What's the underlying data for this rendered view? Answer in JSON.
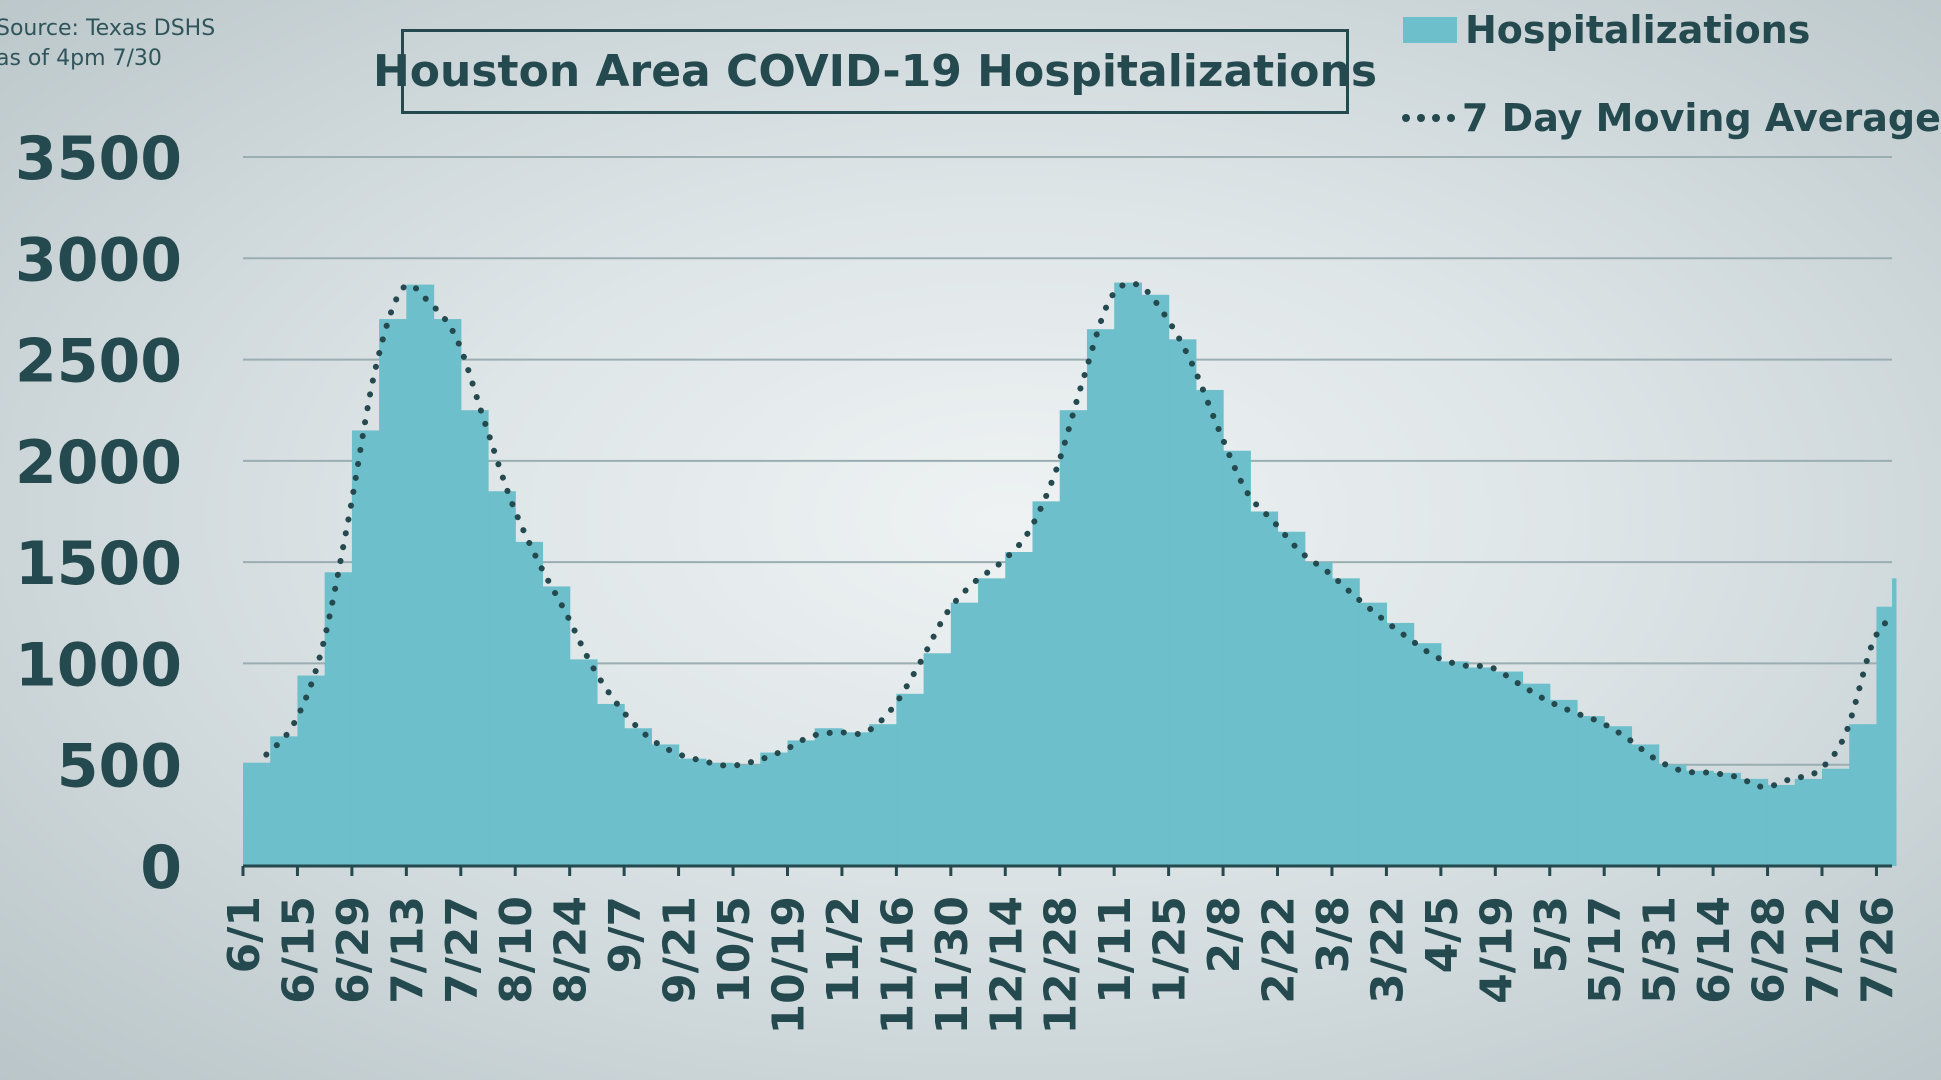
{
  "source": {
    "line1": "Source: Texas DSHS",
    "line2": "as of 4pm 7/30"
  },
  "chart_data": {
    "type": "bar",
    "title": "Houston Area COVID-19 Hospitalizations",
    "xlabel": "",
    "ylabel": "",
    "ylim": [
      0,
      3500
    ],
    "yticks": [
      0,
      500,
      1000,
      1500,
      2000,
      2500,
      3000,
      3500
    ],
    "grid": true,
    "legend_placement": "top-right",
    "x_tick_labels": [
      "6/1",
      "6/15",
      "6/29",
      "7/13",
      "7/27",
      "8/10",
      "8/24",
      "9/7",
      "9/21",
      "10/5",
      "10/19",
      "11/2",
      "11/16",
      "11/30",
      "12/14",
      "12/28",
      "1/11",
      "1/25",
      "2/8",
      "2/22",
      "3/8",
      "3/22",
      "4/5",
      "4/19",
      "5/3",
      "5/17",
      "5/31",
      "6/14",
      "6/28",
      "7/12",
      "7/26"
    ],
    "colors": {
      "bars": "#6dbfcb",
      "line": "#24494e",
      "grid": "#9aaeb2"
    },
    "series": [
      {
        "name": "Hospitalizations",
        "type": "bar",
        "points": [
          {
            "x": "2020-06-01",
            "y": 510
          },
          {
            "x": "2020-06-08",
            "y": 640
          },
          {
            "x": "2020-06-15",
            "y": 940
          },
          {
            "x": "2020-06-22",
            "y": 1450
          },
          {
            "x": "2020-06-29",
            "y": 2150
          },
          {
            "x": "2020-07-06",
            "y": 2700
          },
          {
            "x": "2020-07-13",
            "y": 2870
          },
          {
            "x": "2020-07-20",
            "y": 2700
          },
          {
            "x": "2020-07-27",
            "y": 2250
          },
          {
            "x": "2020-08-03",
            "y": 1850
          },
          {
            "x": "2020-08-10",
            "y": 1600
          },
          {
            "x": "2020-08-17",
            "y": 1380
          },
          {
            "x": "2020-08-24",
            "y": 1020
          },
          {
            "x": "2020-08-31",
            "y": 800
          },
          {
            "x": "2020-09-07",
            "y": 680
          },
          {
            "x": "2020-09-14",
            "y": 600
          },
          {
            "x": "2020-09-21",
            "y": 530
          },
          {
            "x": "2020-09-28",
            "y": 510
          },
          {
            "x": "2020-10-05",
            "y": 500
          },
          {
            "x": "2020-10-12",
            "y": 560
          },
          {
            "x": "2020-10-19",
            "y": 620
          },
          {
            "x": "2020-10-26",
            "y": 680
          },
          {
            "x": "2020-11-02",
            "y": 660
          },
          {
            "x": "2020-11-09",
            "y": 700
          },
          {
            "x": "2020-11-16",
            "y": 850
          },
          {
            "x": "2020-11-23",
            "y": 1050
          },
          {
            "x": "2020-11-30",
            "y": 1300
          },
          {
            "x": "2020-12-07",
            "y": 1420
          },
          {
            "x": "2020-12-14",
            "y": 1550
          },
          {
            "x": "2020-12-21",
            "y": 1800
          },
          {
            "x": "2020-12-28",
            "y": 2250
          },
          {
            "x": "2021-01-04",
            "y": 2650
          },
          {
            "x": "2021-01-11",
            "y": 2880
          },
          {
            "x": "2021-01-18",
            "y": 2820
          },
          {
            "x": "2021-01-25",
            "y": 2600
          },
          {
            "x": "2021-02-01",
            "y": 2350
          },
          {
            "x": "2021-02-08",
            "y": 2050
          },
          {
            "x": "2021-02-15",
            "y": 1750
          },
          {
            "x": "2021-02-22",
            "y": 1650
          },
          {
            "x": "2021-03-01",
            "y": 1500
          },
          {
            "x": "2021-03-08",
            "y": 1420
          },
          {
            "x": "2021-03-15",
            "y": 1300
          },
          {
            "x": "2021-03-22",
            "y": 1200
          },
          {
            "x": "2021-03-29",
            "y": 1100
          },
          {
            "x": "2021-04-05",
            "y": 1010
          },
          {
            "x": "2021-04-12",
            "y": 980
          },
          {
            "x": "2021-04-19",
            "y": 960
          },
          {
            "x": "2021-04-26",
            "y": 900
          },
          {
            "x": "2021-05-03",
            "y": 820
          },
          {
            "x": "2021-05-10",
            "y": 740
          },
          {
            "x": "2021-05-17",
            "y": 690
          },
          {
            "x": "2021-05-24",
            "y": 600
          },
          {
            "x": "2021-05-31",
            "y": 500
          },
          {
            "x": "2021-06-07",
            "y": 470
          },
          {
            "x": "2021-06-14",
            "y": 460
          },
          {
            "x": "2021-06-21",
            "y": 430
          },
          {
            "x": "2021-06-28",
            "y": 400
          },
          {
            "x": "2021-07-05",
            "y": 430
          },
          {
            "x": "2021-07-12",
            "y": 480
          },
          {
            "x": "2021-07-19",
            "y": 700
          },
          {
            "x": "2021-07-26",
            "y": 1280
          },
          {
            "x": "2021-07-30",
            "y": 1420
          }
        ]
      },
      {
        "name": "7 Day Moving Average",
        "type": "line",
        "style": "dotted",
        "points": [
          {
            "x": "2020-06-07",
            "y": 550
          },
          {
            "x": "2020-06-14",
            "y": 700
          },
          {
            "x": "2020-06-21",
            "y": 1050
          },
          {
            "x": "2020-06-28",
            "y": 1700
          },
          {
            "x": "2020-07-05",
            "y": 2450
          },
          {
            "x": "2020-07-12",
            "y": 2850
          },
          {
            "x": "2020-07-19",
            "y": 2780
          },
          {
            "x": "2020-07-26",
            "y": 2600
          },
          {
            "x": "2020-08-02",
            "y": 2200
          },
          {
            "x": "2020-08-09",
            "y": 1800
          },
          {
            "x": "2020-08-16",
            "y": 1500
          },
          {
            "x": "2020-08-23",
            "y": 1250
          },
          {
            "x": "2020-08-30",
            "y": 980
          },
          {
            "x": "2020-09-06",
            "y": 780
          },
          {
            "x": "2020-09-13",
            "y": 640
          },
          {
            "x": "2020-09-20",
            "y": 560
          },
          {
            "x": "2020-09-27",
            "y": 520
          },
          {
            "x": "2020-10-04",
            "y": 495
          },
          {
            "x": "2020-10-11",
            "y": 520
          },
          {
            "x": "2020-10-18",
            "y": 570
          },
          {
            "x": "2020-10-25",
            "y": 640
          },
          {
            "x": "2020-11-01",
            "y": 660
          },
          {
            "x": "2020-11-08",
            "y": 660
          },
          {
            "x": "2020-11-15",
            "y": 780
          },
          {
            "x": "2020-11-22",
            "y": 1000
          },
          {
            "x": "2020-11-29",
            "y": 1250
          },
          {
            "x": "2020-12-06",
            "y": 1400
          },
          {
            "x": "2020-12-13",
            "y": 1500
          },
          {
            "x": "2020-12-20",
            "y": 1650
          },
          {
            "x": "2020-12-27",
            "y": 1950
          },
          {
            "x": "2021-01-03",
            "y": 2400
          },
          {
            "x": "2021-01-10",
            "y": 2800
          },
          {
            "x": "2021-01-17",
            "y": 2870
          },
          {
            "x": "2021-01-24",
            "y": 2720
          },
          {
            "x": "2021-01-31",
            "y": 2480
          },
          {
            "x": "2021-02-07",
            "y": 2150
          },
          {
            "x": "2021-02-14",
            "y": 1850
          },
          {
            "x": "2021-02-21",
            "y": 1700
          },
          {
            "x": "2021-02-28",
            "y": 1550
          },
          {
            "x": "2021-03-07",
            "y": 1450
          },
          {
            "x": "2021-03-14",
            "y": 1330
          },
          {
            "x": "2021-03-21",
            "y": 1220
          },
          {
            "x": "2021-03-28",
            "y": 1120
          },
          {
            "x": "2021-04-04",
            "y": 1030
          },
          {
            "x": "2021-04-11",
            "y": 990
          },
          {
            "x": "2021-04-18",
            "y": 980
          },
          {
            "x": "2021-04-25",
            "y": 900
          },
          {
            "x": "2021-05-02",
            "y": 820
          },
          {
            "x": "2021-05-09",
            "y": 760
          },
          {
            "x": "2021-05-16",
            "y": 710
          },
          {
            "x": "2021-05-23",
            "y": 630
          },
          {
            "x": "2021-05-30",
            "y": 530
          },
          {
            "x": "2021-06-06",
            "y": 470
          },
          {
            "x": "2021-06-13",
            "y": 460
          },
          {
            "x": "2021-06-20",
            "y": 440
          },
          {
            "x": "2021-06-27",
            "y": 390
          },
          {
            "x": "2021-07-04",
            "y": 430
          },
          {
            "x": "2021-07-11",
            "y": 470
          },
          {
            "x": "2021-07-18",
            "y": 650
          },
          {
            "x": "2021-07-25",
            "y": 1100
          },
          {
            "x": "2021-07-30",
            "y": 1230
          }
        ]
      }
    ]
  }
}
